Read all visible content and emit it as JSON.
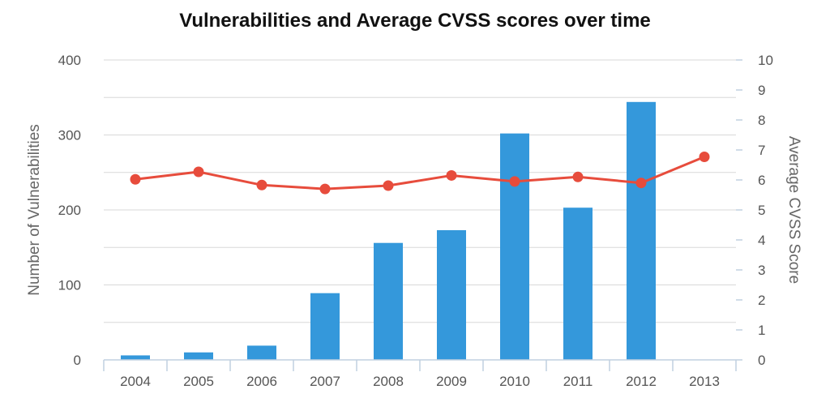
{
  "chart_data": {
    "type": "bar",
    "title": "Vulnerabilities and Average CVSS scores over time",
    "categories": [
      "2004",
      "2005",
      "2006",
      "2007",
      "2008",
      "2009",
      "2010",
      "2011",
      "2012",
      "2013"
    ],
    "series": [
      {
        "type": "bar",
        "axis": "left",
        "color": "#3498db",
        "values": [
          6,
          10,
          19,
          89,
          156,
          173,
          302,
          203,
          344,
          0
        ]
      },
      {
        "type": "line",
        "axis": "right",
        "color": "#e74c3c",
        "values": [
          6.02,
          6.27,
          5.83,
          5.7,
          5.81,
          6.15,
          5.95,
          6.1,
          5.9,
          6.77
        ]
      }
    ],
    "ylabel": "Number of Vulnerabilities",
    "y2label": "Average CVSS Score",
    "ylim": [
      0,
      400
    ],
    "y2lim": [
      0,
      10
    ],
    "yticks": [
      "0",
      "100",
      "200",
      "300",
      "400"
    ],
    "y2ticks": [
      "0",
      "1",
      "2",
      "3",
      "4",
      "5",
      "6",
      "7",
      "8",
      "9",
      "10"
    ],
    "grid": true,
    "legend": "none"
  }
}
